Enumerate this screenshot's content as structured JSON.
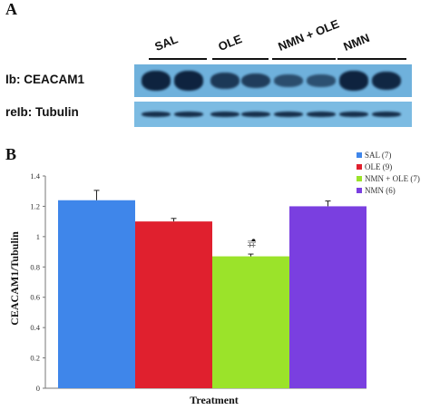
{
  "panel_a": {
    "letter": "A",
    "groups": [
      "SAL",
      "OLE",
      "NMN + OLE",
      "NMN"
    ],
    "blots": [
      {
        "label": "Ib: CEACAM1",
        "intensities": [
          0.95,
          0.95,
          0.72,
          0.68,
          0.5,
          0.48,
          0.95,
          0.9
        ]
      },
      {
        "label": "reIb: Tubulin",
        "intensities": [
          0.85,
          0.85,
          0.85,
          0.85,
          0.85,
          0.85,
          0.85,
          0.85
        ]
      }
    ],
    "band_color": "#0b1f3a",
    "strip_color": "#6fb1dc"
  },
  "chart_data": {
    "type": "bar",
    "panel_letter": "B",
    "categories": [
      "SAL (7)",
      "OLE (9)",
      "NMN + OLE (7)",
      "NMN (6)"
    ],
    "values": [
      1.24,
      1.1,
      0.87,
      1.2
    ],
    "errors": [
      0.065,
      0.02,
      0.015,
      0.035
    ],
    "colors": [
      "#3f86ea",
      "#e0202e",
      "#9be32a",
      "#7a3fe0"
    ],
    "annotations": [
      "",
      "",
      "¶‡",
      ""
    ],
    "legend": [
      "SAL (7)",
      "OLE (9)",
      "NMN + OLE (7)",
      "NMN (6)"
    ],
    "legend_position": "top-right",
    "xlabel": "Treatment",
    "ylabel": "CEACAM1/Tubulin",
    "ylim": [
      0,
      1.4
    ],
    "yticks": [
      "0",
      "0.2",
      "0.4",
      "0.6",
      "0.8",
      "1",
      "1.2",
      "1.4"
    ],
    "grid": false
  }
}
